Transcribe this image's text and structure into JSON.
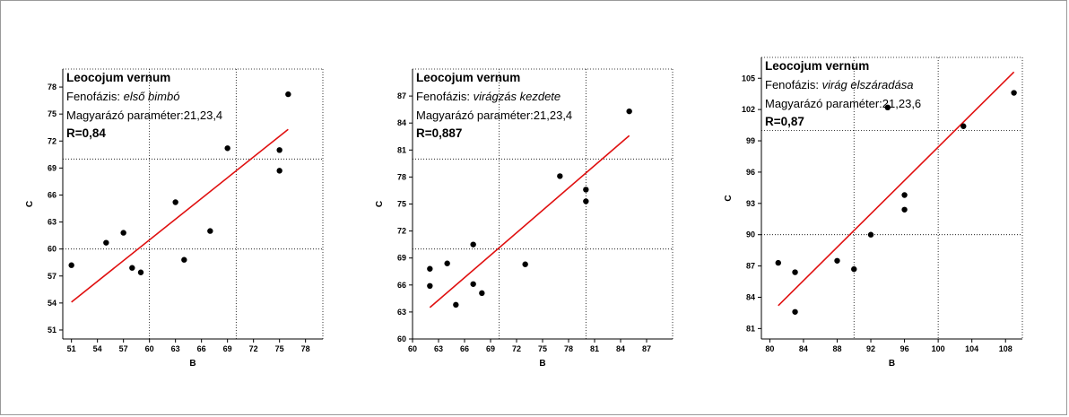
{
  "chart_data": [
    {
      "type": "scatter",
      "title": "Leocojum vernum",
      "phase_label": "Fenofázis: ",
      "phase_value": "első bimbó",
      "param_text": "Magyarázó paraméter:21,23,4",
      "r_text": "R=0,84",
      "xlabel": "B",
      "ylabel": "C",
      "xlim": [
        50,
        80
      ],
      "ylim": [
        50,
        80
      ],
      "xticks": [
        51,
        54,
        57,
        60,
        63,
        66,
        69,
        72,
        75,
        78
      ],
      "yticks": [
        51,
        54,
        57,
        60,
        63,
        66,
        69,
        72,
        75,
        78
      ],
      "grid_x": [
        60,
        70
      ],
      "grid_y": [
        60,
        70
      ],
      "points": [
        [
          51,
          58.2
        ],
        [
          55,
          60.7
        ],
        [
          57,
          61.8
        ],
        [
          58,
          57.9
        ],
        [
          59,
          57.4
        ],
        [
          63,
          65.2
        ],
        [
          64,
          58.8
        ],
        [
          67,
          62
        ],
        [
          69,
          71.2
        ],
        [
          75,
          71
        ],
        [
          75,
          68.7
        ],
        [
          76,
          77.2
        ]
      ],
      "fit": [
        [
          51,
          54.1
        ],
        [
          76,
          73.3
        ]
      ],
      "fit_color": "#e01010"
    },
    {
      "type": "scatter",
      "title": "Leocojum vernum",
      "phase_label": "Fenofázis: ",
      "phase_value": "virágzás kezdete",
      "param_text": "Magyarázó paraméter:21,23,4",
      "r_text": "R=0,887",
      "xlabel": "B",
      "ylabel": "C",
      "xlim": [
        60,
        90
      ],
      "ylim": [
        60,
        90
      ],
      "xticks": [
        60,
        63,
        66,
        69,
        72,
        75,
        78,
        81,
        84,
        87
      ],
      "yticks": [
        60,
        63,
        66,
        69,
        72,
        75,
        78,
        81,
        84,
        87
      ],
      "grid_x": [
        70,
        80
      ],
      "grid_y": [
        70,
        80
      ],
      "points": [
        [
          62,
          67.8
        ],
        [
          62,
          65.9
        ],
        [
          64,
          68.4
        ],
        [
          65,
          63.8
        ],
        [
          67,
          70.5
        ],
        [
          67,
          66.1
        ],
        [
          68,
          65.1
        ],
        [
          73,
          68.3
        ],
        [
          77,
          78.1
        ],
        [
          80,
          76.6
        ],
        [
          80,
          75.3
        ],
        [
          85,
          85.3
        ]
      ],
      "fit": [
        [
          62,
          63.5
        ],
        [
          85,
          82.6
        ]
      ],
      "fit_color": "#e01010"
    },
    {
      "type": "scatter",
      "title": "Leocojum vernum",
      "phase_label": "Fenofázis: ",
      "phase_value": "virág elszáradása",
      "param_text": "Magyarázó paraméter:21,23,6",
      "r_text": "R=0,87",
      "xlabel": "B",
      "ylabel": "C",
      "xlim": [
        79,
        110
      ],
      "ylim": [
        80,
        107
      ],
      "xticks": [
        80,
        84,
        88,
        92,
        96,
        100,
        104,
        108
      ],
      "yticks": [
        81,
        84,
        87,
        90,
        93,
        96,
        99,
        102,
        105
      ],
      "grid_x": [
        90,
        100
      ],
      "grid_y": [
        90,
        100
      ],
      "points": [
        [
          81,
          87.3
        ],
        [
          83,
          86.4
        ],
        [
          83,
          82.6
        ],
        [
          88,
          87.5
        ],
        [
          90,
          86.7
        ],
        [
          92,
          90
        ],
        [
          94,
          102.2
        ],
        [
          96,
          93.8
        ],
        [
          96,
          92.4
        ],
        [
          103,
          100.4
        ],
        [
          109,
          103.6
        ]
      ],
      "fit": [
        [
          81,
          83.2
        ],
        [
          109,
          105.6
        ]
      ],
      "fit_color": "#e01010"
    }
  ]
}
